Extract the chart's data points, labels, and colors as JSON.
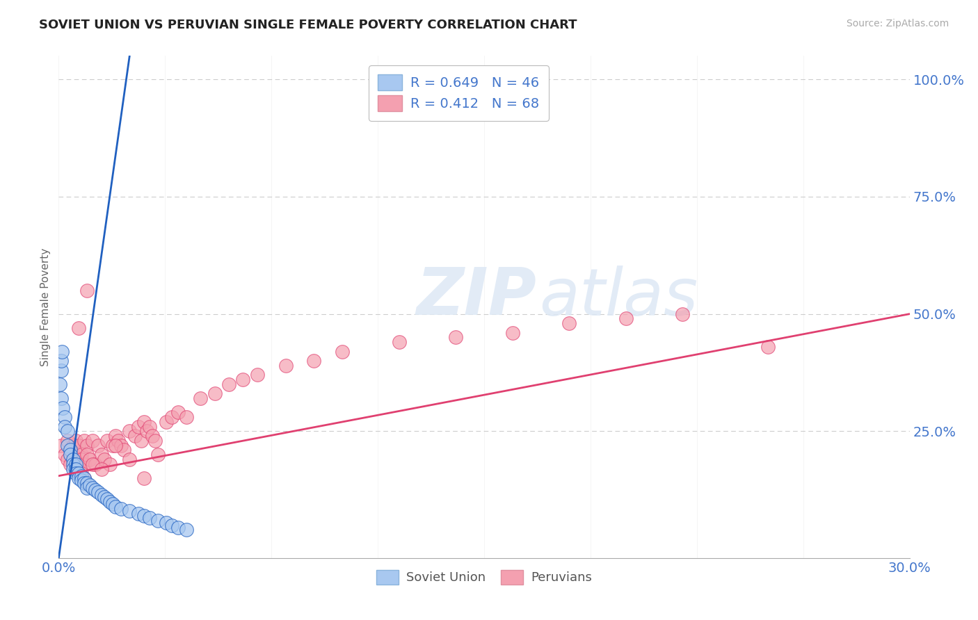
{
  "title": "SOVIET UNION VS PERUVIAN SINGLE FEMALE POVERTY CORRELATION CHART",
  "source": "Source: ZipAtlas.com",
  "ylabel": "Single Female Poverty",
  "legend_soviet": "R = 0.649   N = 46",
  "legend_peruvian": "R = 0.412   N = 68",
  "legend_label_soviet": "Soviet Union",
  "legend_label_peruvian": "Peruvians",
  "xlim": [
    0.0,
    0.3
  ],
  "ylim": [
    -0.02,
    1.05
  ],
  "color_soviet": "#a8c8f0",
  "color_peruvian": "#f4a0b0",
  "color_soviet_line": "#2060c0",
  "color_peruvian_line": "#e04070",
  "background_color": "#ffffff",
  "title_color": "#222222",
  "axis_label_color": "#4477cc",
  "grid_color": "#cccccc",
  "soviet_x": [
    0.0005,
    0.001,
    0.001,
    0.0015,
    0.002,
    0.002,
    0.003,
    0.003,
    0.004,
    0.004,
    0.005,
    0.005,
    0.005,
    0.006,
    0.006,
    0.006,
    0.007,
    0.007,
    0.008,
    0.008,
    0.009,
    0.009,
    0.01,
    0.01,
    0.011,
    0.012,
    0.013,
    0.014,
    0.015,
    0.016,
    0.017,
    0.018,
    0.019,
    0.02,
    0.022,
    0.025,
    0.028,
    0.03,
    0.032,
    0.035,
    0.038,
    0.04,
    0.042,
    0.045,
    0.0008,
    0.0012
  ],
  "soviet_y": [
    0.35,
    0.38,
    0.32,
    0.3,
    0.28,
    0.26,
    0.25,
    0.22,
    0.21,
    0.2,
    0.19,
    0.18,
    0.17,
    0.18,
    0.17,
    0.16,
    0.16,
    0.15,
    0.155,
    0.145,
    0.15,
    0.14,
    0.14,
    0.13,
    0.135,
    0.13,
    0.125,
    0.12,
    0.115,
    0.11,
    0.105,
    0.1,
    0.095,
    0.09,
    0.085,
    0.08,
    0.075,
    0.07,
    0.065,
    0.06,
    0.055,
    0.05,
    0.045,
    0.04,
    0.4,
    0.42
  ],
  "peruvian_x": [
    0.001,
    0.002,
    0.003,
    0.003,
    0.004,
    0.005,
    0.005,
    0.006,
    0.006,
    0.007,
    0.007,
    0.008,
    0.008,
    0.009,
    0.009,
    0.01,
    0.01,
    0.011,
    0.012,
    0.013,
    0.014,
    0.015,
    0.016,
    0.017,
    0.018,
    0.019,
    0.02,
    0.021,
    0.022,
    0.023,
    0.025,
    0.027,
    0.028,
    0.029,
    0.03,
    0.031,
    0.032,
    0.033,
    0.034,
    0.035,
    0.038,
    0.04,
    0.042,
    0.045,
    0.05,
    0.055,
    0.06,
    0.065,
    0.07,
    0.08,
    0.09,
    0.1,
    0.12,
    0.14,
    0.16,
    0.18,
    0.2,
    0.22,
    0.25,
    0.007,
    0.008,
    0.009,
    0.01,
    0.012,
    0.015,
    0.02,
    0.025,
    0.03
  ],
  "peruvian_y": [
    0.22,
    0.2,
    0.19,
    0.23,
    0.18,
    0.22,
    0.2,
    0.19,
    0.23,
    0.18,
    0.22,
    0.2,
    0.19,
    0.23,
    0.18,
    0.22,
    0.2,
    0.19,
    0.23,
    0.18,
    0.22,
    0.2,
    0.19,
    0.23,
    0.18,
    0.22,
    0.24,
    0.23,
    0.22,
    0.21,
    0.25,
    0.24,
    0.26,
    0.23,
    0.27,
    0.25,
    0.26,
    0.24,
    0.23,
    0.2,
    0.27,
    0.28,
    0.29,
    0.28,
    0.32,
    0.33,
    0.35,
    0.36,
    0.37,
    0.39,
    0.4,
    0.42,
    0.44,
    0.45,
    0.46,
    0.48,
    0.49,
    0.5,
    0.43,
    0.47,
    0.16,
    0.15,
    0.55,
    0.18,
    0.17,
    0.22,
    0.19,
    0.15
  ],
  "sv_line_x0": 0.0,
  "sv_line_x1": 0.025,
  "sv_line_y0": -0.02,
  "sv_line_y1": 1.05,
  "pe_line_x0": 0.0,
  "pe_line_x1": 0.3,
  "pe_line_y0": 0.155,
  "pe_line_y1": 0.5
}
